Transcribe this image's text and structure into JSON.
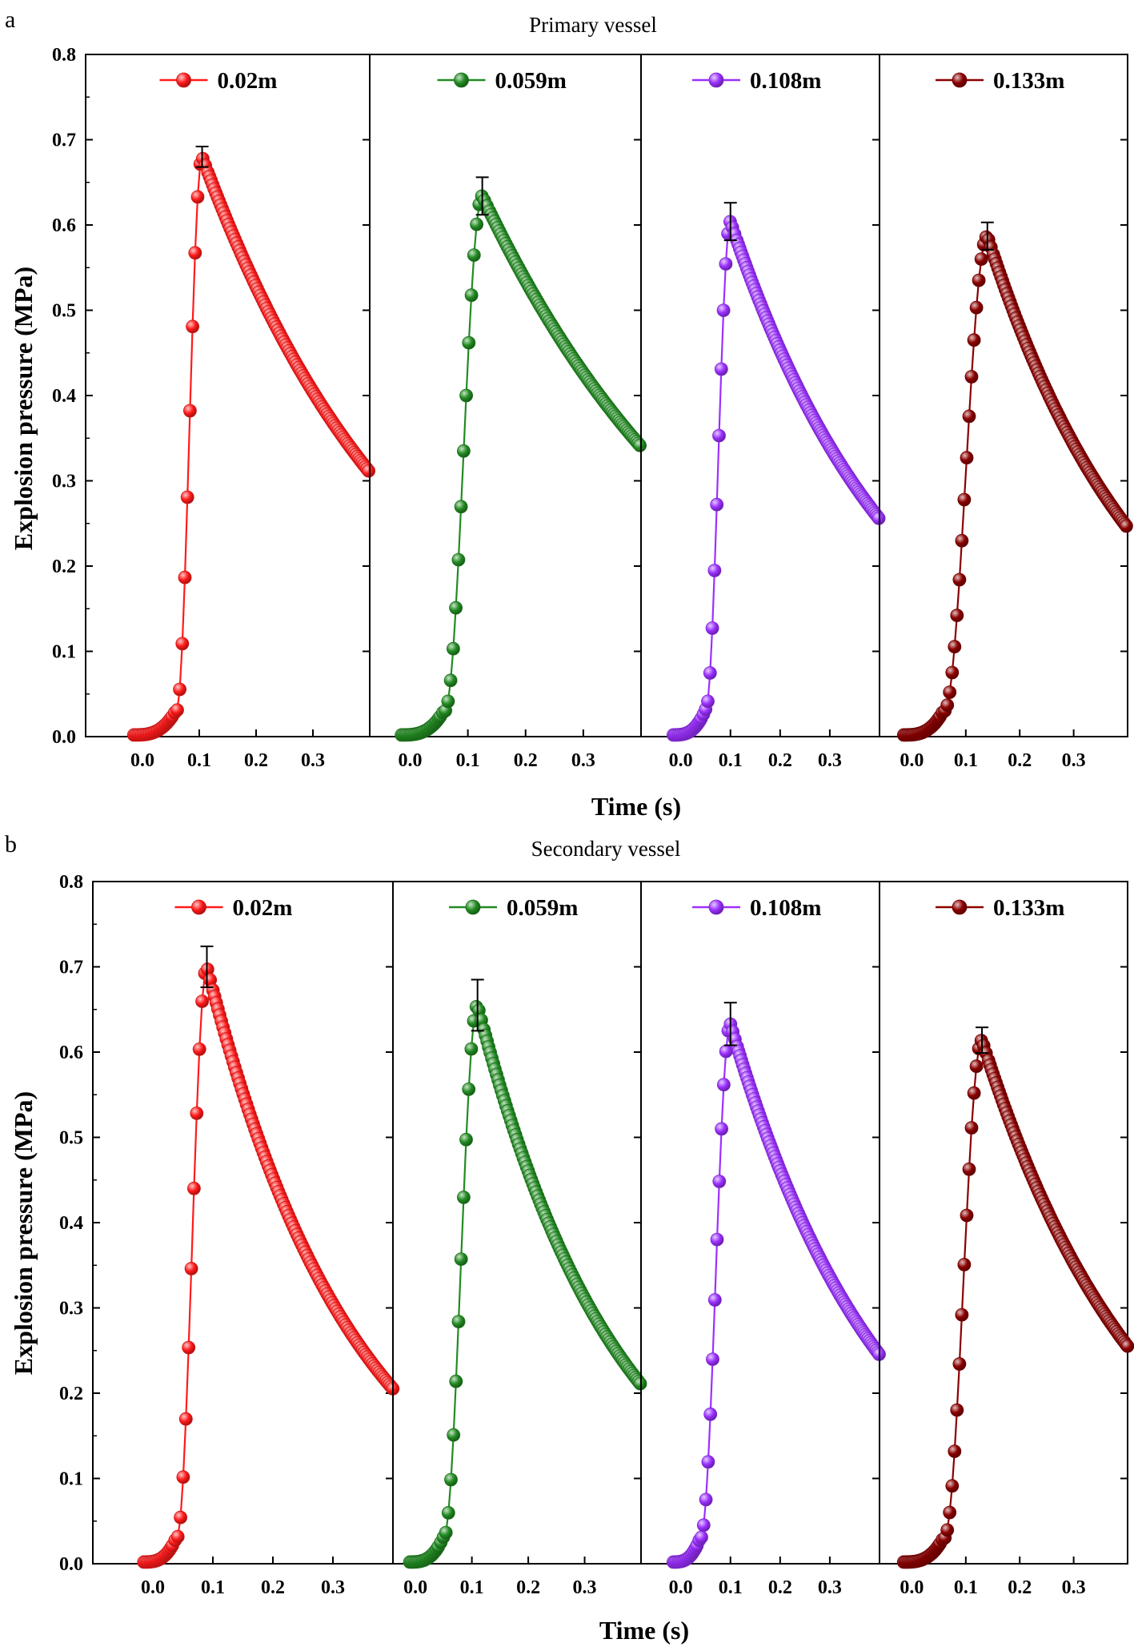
{
  "figures": [
    {
      "letter": "a",
      "title": "Primary vessel",
      "ylabel": "Explosion pressure (MPa)",
      "xlabel": "Time (s)"
    },
    {
      "letter": "b",
      "title": "Secondary vessel",
      "ylabel": "Explosion pressure (MPa)",
      "xlabel": "Time (s)"
    }
  ],
  "chart_data": [
    {
      "type": "line",
      "title": "Primary vessel",
      "xlabel": "Time (s)",
      "ylabel": "Explosion pressure (MPa)",
      "ylim": [
        0,
        0.8
      ],
      "y_ticks": [
        "0.0",
        "0.1",
        "0.2",
        "0.3",
        "0.4",
        "0.5",
        "0.6",
        "0.7",
        "0.8"
      ],
      "x_ticks": [
        "0.0",
        "0.1",
        "0.2",
        "0.3"
      ],
      "legend_position": "top-center of each panel",
      "series": [
        {
          "name": "0.02m",
          "color": "#ff1a1a",
          "xlim": [
            -0.1,
            0.4
          ],
          "peak_t": 0.105,
          "peak_p": 0.68,
          "onset_t": 0.06,
          "tail_p": 0.31,
          "err": 0.012
        },
        {
          "name": "0.059m",
          "color": "#228b22",
          "xlim": [
            -0.07,
            0.4
          ],
          "peak_t": 0.125,
          "peak_p": 0.634,
          "onset_t": 0.06,
          "tail_p": 0.34,
          "err": 0.022
        },
        {
          "name": "0.108m",
          "color": "#9b30ff",
          "xlim": [
            -0.08,
            0.4
          ],
          "peak_t": 0.1,
          "peak_p": 0.604,
          "onset_t": 0.05,
          "tail_p": 0.255,
          "err": 0.022
        },
        {
          "name": "0.133m",
          "color": "#8b0000",
          "xlim": [
            -0.06,
            0.4
          ],
          "peak_t": 0.14,
          "peak_p": 0.587,
          "onset_t": 0.06,
          "tail_p": 0.245,
          "err": 0.016
        }
      ]
    },
    {
      "type": "line",
      "title": "Secondary vessel",
      "xlabel": "Time (s)",
      "ylabel": "Explosion pressure (MPa)",
      "ylim": [
        0,
        0.8
      ],
      "y_ticks": [
        "0.0",
        "0.1",
        "0.2",
        "0.3",
        "0.4",
        "0.5",
        "0.6",
        "0.7",
        "0.8"
      ],
      "x_ticks": [
        "0.0",
        "0.1",
        "0.2",
        "0.3"
      ],
      "legend_position": "top-center of each panel",
      "series": [
        {
          "name": "0.02m",
          "color": "#ff1a1a",
          "xlim": [
            -0.1,
            0.4
          ],
          "peak_t": 0.09,
          "peak_p": 0.7,
          "onset_t": 0.04,
          "tail_p": 0.205,
          "err": 0.024
        },
        {
          "name": "0.059m",
          "color": "#228b22",
          "xlim": [
            -0.04,
            0.4
          ],
          "peak_t": 0.11,
          "peak_p": 0.655,
          "onset_t": 0.05,
          "tail_p": 0.21,
          "err": 0.03
        },
        {
          "name": "0.108m",
          "color": "#9b30ff",
          "xlim": [
            -0.08,
            0.4
          ],
          "peak_t": 0.1,
          "peak_p": 0.633,
          "onset_t": 0.04,
          "tail_p": 0.245,
          "err": 0.025
        },
        {
          "name": "0.133m",
          "color": "#8b0000",
          "xlim": [
            -0.06,
            0.4
          ],
          "peak_t": 0.13,
          "peak_p": 0.614,
          "onset_t": 0.06,
          "tail_p": 0.255,
          "err": 0.015
        }
      ]
    }
  ]
}
